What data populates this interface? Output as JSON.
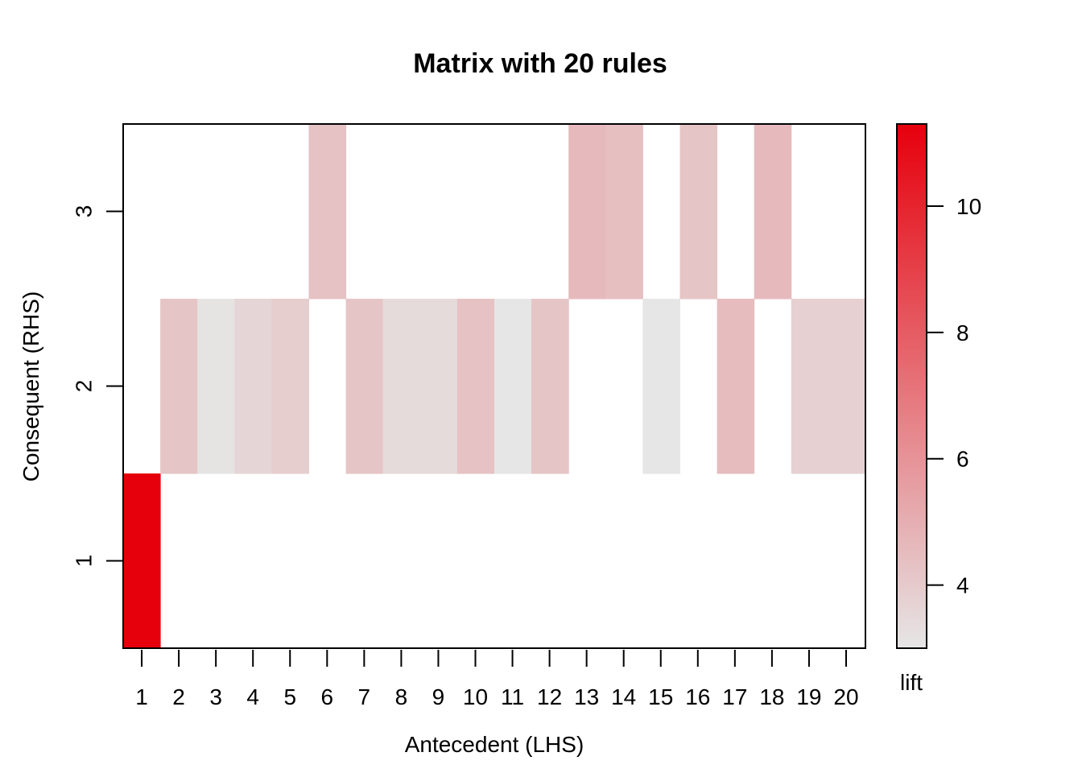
{
  "chart_data": {
    "type": "heatmap",
    "title": "Matrix with 20 rules",
    "xlabel": "Antecedent (LHS)",
    "ylabel": "Consequent (RHS)",
    "x_categories": [
      "1",
      "2",
      "3",
      "4",
      "5",
      "6",
      "7",
      "8",
      "9",
      "10",
      "11",
      "12",
      "13",
      "14",
      "15",
      "16",
      "17",
      "18",
      "19",
      "20"
    ],
    "y_categories": [
      "1",
      "2",
      "3"
    ],
    "cells": [
      {
        "x": 1,
        "y": 1,
        "lift": 11.3
      },
      {
        "x": 2,
        "y": 2,
        "lift": 4.2
      },
      {
        "x": 3,
        "y": 2,
        "lift": 3.1
      },
      {
        "x": 4,
        "y": 2,
        "lift": 3.6
      },
      {
        "x": 5,
        "y": 2,
        "lift": 3.9
      },
      {
        "x": 6,
        "y": 3,
        "lift": 4.3
      },
      {
        "x": 7,
        "y": 2,
        "lift": 4.2
      },
      {
        "x": 8,
        "y": 2,
        "lift": 3.4
      },
      {
        "x": 9,
        "y": 2,
        "lift": 3.4
      },
      {
        "x": 10,
        "y": 2,
        "lift": 4.3
      },
      {
        "x": 11,
        "y": 2,
        "lift": 3.0
      },
      {
        "x": 12,
        "y": 2,
        "lift": 4.2
      },
      {
        "x": 13,
        "y": 3,
        "lift": 4.6
      },
      {
        "x": 14,
        "y": 3,
        "lift": 4.4
      },
      {
        "x": 15,
        "y": 2,
        "lift": 3.0
      },
      {
        "x": 16,
        "y": 3,
        "lift": 4.2
      },
      {
        "x": 17,
        "y": 2,
        "lift": 4.5
      },
      {
        "x": 18,
        "y": 3,
        "lift": 4.6
      },
      {
        "x": 19,
        "y": 2,
        "lift": 3.8
      },
      {
        "x": 20,
        "y": 2,
        "lift": 3.8
      }
    ],
    "colorbar": {
      "label": "lift",
      "range": [
        3,
        11.3
      ],
      "ticks": [
        4,
        6,
        8,
        10
      ],
      "low_color": "#e6e6e6",
      "high_color": "#e6000c"
    },
    "grid": false
  }
}
